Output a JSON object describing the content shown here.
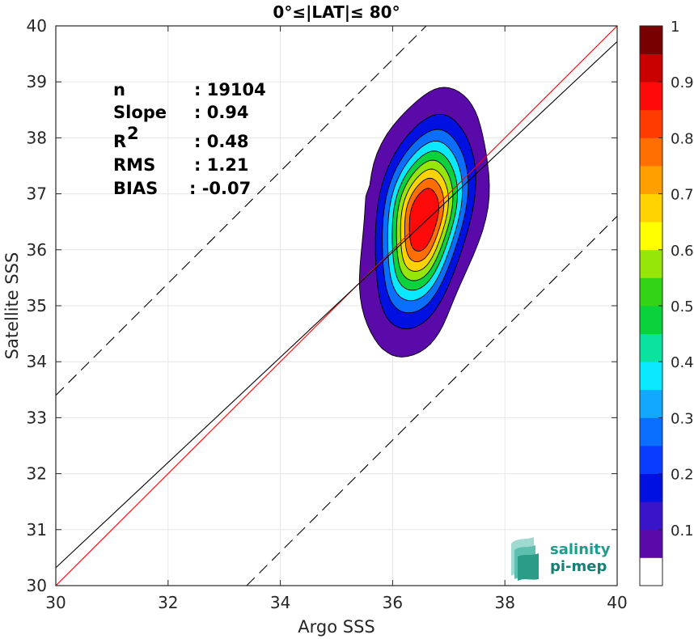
{
  "chart_data": {
    "type": "heatmap",
    "title": "0°≤|LAT|≤ 80°",
    "xlabel": "Argo SSS",
    "ylabel": "Satellite SSS",
    "xlim": [
      30,
      40
    ],
    "ylim": [
      30,
      40
    ],
    "xticks": [
      "30",
      "32",
      "34",
      "36",
      "38",
      "40"
    ],
    "yticks": [
      "30",
      "31",
      "32",
      "33",
      "34",
      "35",
      "36",
      "37",
      "38",
      "39",
      "40"
    ],
    "grid": true,
    "stats": [
      {
        "label": "n",
        "value": ": 19104"
      },
      {
        "label": "Slope",
        "value": ": 0.94"
      },
      {
        "label": "R",
        "sup": "2",
        "value": ": 0.48"
      },
      {
        "label": "RMS",
        "value": ": 1.21"
      },
      {
        "label": "BIAS",
        "value": ": -0.07"
      }
    ],
    "density_center": [
      36.55,
      36.55
    ],
    "density_levels": [
      0.05,
      0.15,
      0.25,
      0.35,
      0.45,
      0.55,
      0.65,
      0.75,
      0.85
    ],
    "lines": [
      {
        "kind": "identity",
        "slope": 1,
        "intercept": 0,
        "color": "#ff0000",
        "style": "solid"
      },
      {
        "kind": "regression",
        "slope": 0.94,
        "intercept": 2.12,
        "color": "#000000",
        "style": "solid"
      },
      {
        "kind": "upper-bound",
        "slope": 1,
        "intercept": 3.4,
        "color": "#000000",
        "style": "dashed"
      },
      {
        "kind": "lower-bound",
        "slope": 1,
        "intercept": -3.4,
        "color": "#000000",
        "style": "dashed"
      }
    ],
    "colorbar": {
      "range": [
        0,
        1
      ],
      "ticks": [
        "0.1",
        "0.2",
        "0.3",
        "0.4",
        "0.5",
        "0.6",
        "0.7",
        "0.8",
        "0.9",
        "1"
      ],
      "colors": [
        "#ffffff",
        "#5a0aa8",
        "#3a14c8",
        "#0010e0",
        "#0a3cff",
        "#0a6fff",
        "#12a8ff",
        "#0ae8ff",
        "#0ae2a0",
        "#0ad23c",
        "#32d214",
        "#96e60a",
        "#ffff00",
        "#ffd200",
        "#ffa000",
        "#ff6e00",
        "#ff3c00",
        "#ff0a0a",
        "#c80000",
        "#780000"
      ]
    }
  },
  "logo": {
    "line1": "salinity",
    "line2": "pi-mep"
  }
}
